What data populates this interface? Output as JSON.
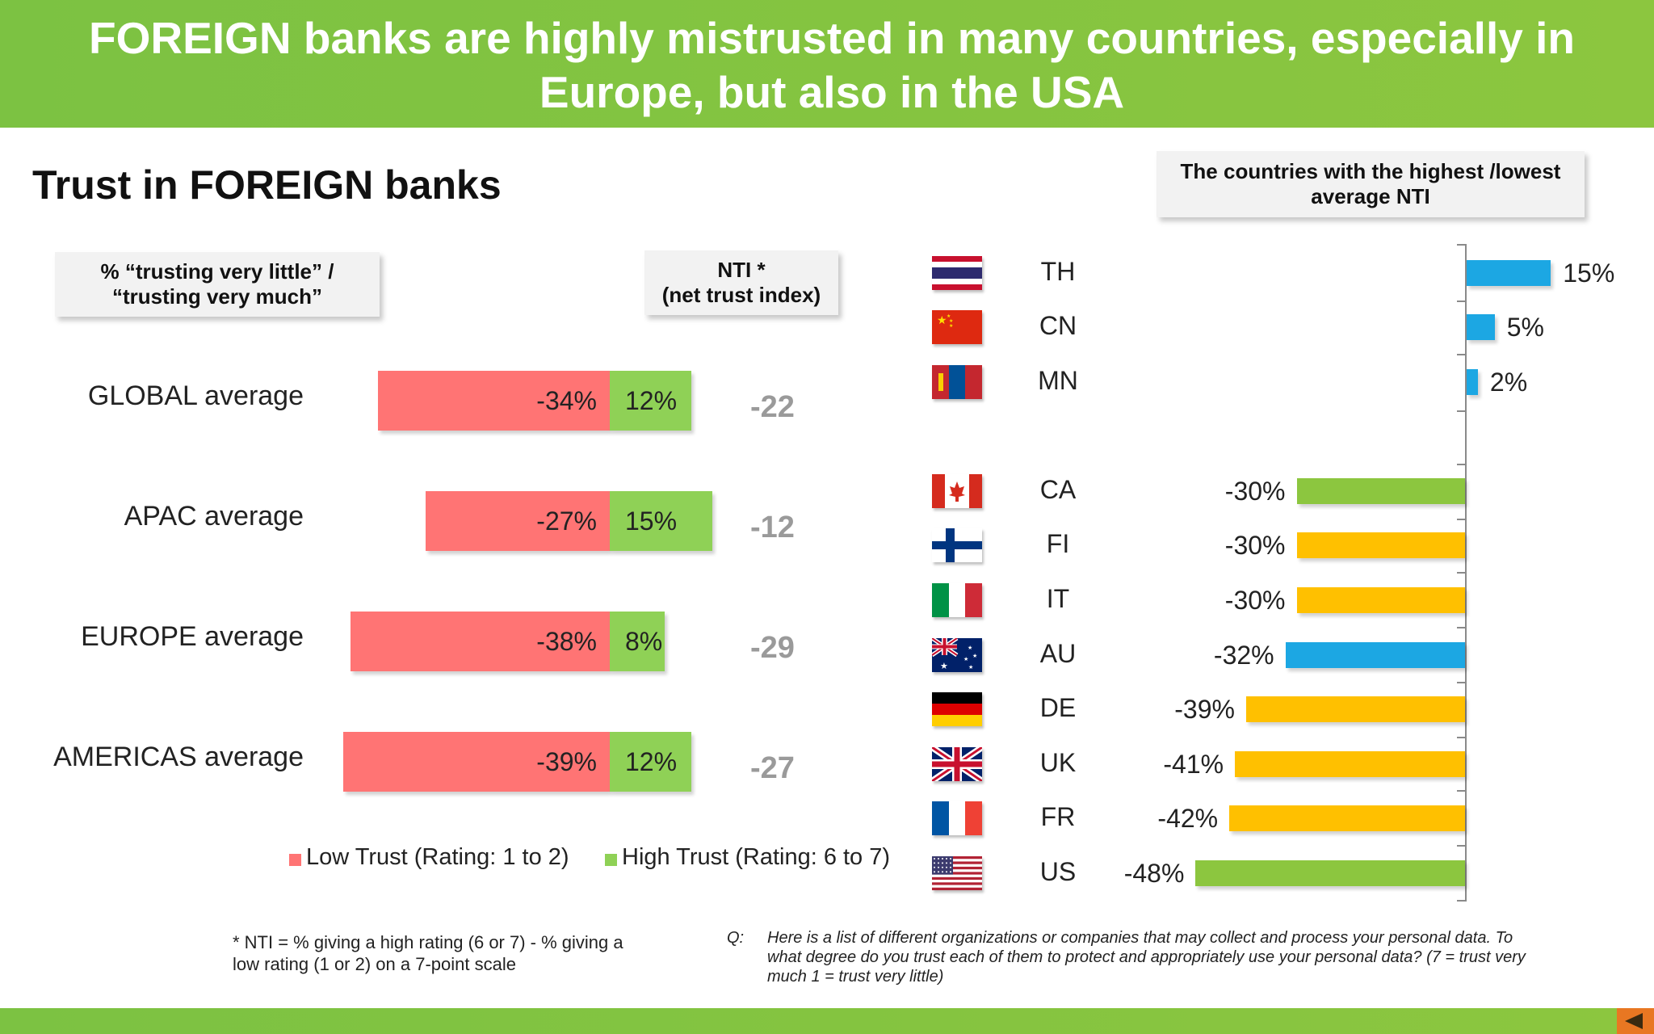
{
  "header": {
    "title": "FOREIGN banks are highly mistrusted in many countries, especially in Europe, but also in the USA"
  },
  "left_panel": {
    "title": "Trust in FOREIGN banks",
    "pct_callout": {
      "line1": "% “trusting very  little” /",
      "line2": "“trusting very much”"
    },
    "nti_callout": {
      "line1": "NTI *",
      "line2": "(net trust index)"
    }
  },
  "right_panel": {
    "callout": {
      "line1": "The countries with the highest /lowest",
      "line2": "average NTI"
    }
  },
  "legend": {
    "low": "Low Trust (Rating: 1 to 2)",
    "high": "High Trust (Rating: 6 to 7)"
  },
  "footnote": {
    "line1": "* NTI = % giving a high rating (6 or 7) - % giving a",
    "line2": "low rating (1 or 2) on a 7-point scale"
  },
  "question": {
    "label": "Q:",
    "line1": "Here is a list of different organizations or companies that may collect and process your personal data.  To",
    "line2": "what degree do you trust each of them to protect and appropriately use your personal data? (7 = trust very",
    "line3": "much 1 = trust very little)"
  },
  "colors": {
    "header": "#8cc63f",
    "low_trust": "#ff7474",
    "high_trust": "#8fd156",
    "nti_text": "#9a9a9a",
    "nti_blue": "#1ca7e3",
    "nti_green": "#8cc63f",
    "nti_yellow": "#ffc000"
  },
  "chart_data": [
    {
      "type": "bar",
      "orientation": "horizontal",
      "stacked": true,
      "categories": [
        "GLOBAL average",
        "APAC average",
        "EUROPE average",
        "AMERICAS average"
      ],
      "series": [
        {
          "name": "Low Trust (Rating: 1 to 2)",
          "values": [
            -34,
            -27,
            -38,
            -39
          ],
          "labels": [
            "-34%",
            "-27%",
            "-38%",
            "-39%"
          ],
          "color": "#ff7474"
        },
        {
          "name": "High Trust (Rating: 6 to 7)",
          "values": [
            12,
            15,
            8,
            12
          ],
          "labels": [
            "12%",
            "15%",
            "8%",
            "12%"
          ],
          "color": "#8fd156"
        }
      ],
      "nti": [
        -22,
        -12,
        -29,
        -27
      ],
      "nti_labels": [
        "-22",
        "-12",
        "-29",
        "-27"
      ]
    },
    {
      "type": "bar",
      "orientation": "horizontal",
      "categories": [
        "TH",
        "CN",
        "MN",
        "CA",
        "FI",
        "IT",
        "AU",
        "DE",
        "UK",
        "FR",
        "US"
      ],
      "values": [
        15,
        5,
        2,
        -30,
        -30,
        -30,
        -32,
        -39,
        -41,
        -42,
        -48
      ],
      "labels": [
        "15%",
        "5%",
        "2%",
        "-30%",
        "-30%",
        "-30%",
        "-32%",
        "-39%",
        "-41%",
        "-42%",
        "-48%"
      ],
      "bar_colors": [
        "#1ca7e3",
        "#1ca7e3",
        "#1ca7e3",
        "#8cc63f",
        "#ffc000",
        "#ffc000",
        "#1ca7e3",
        "#ffc000",
        "#ffc000",
        "#ffc000",
        "#8cc63f"
      ],
      "flags": [
        "thailand-flag",
        "china-flag",
        "mongolia-flag",
        "canada-flag",
        "finland-flag",
        "italy-flag",
        "australia-flag",
        "germany-flag",
        "uk-flag",
        "france-flag",
        "usa-flag"
      ]
    }
  ]
}
